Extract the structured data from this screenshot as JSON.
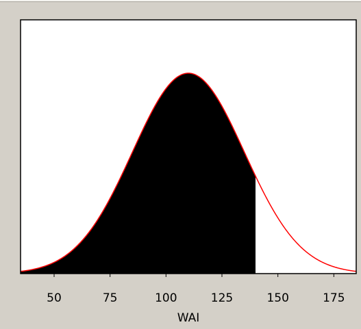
{
  "chart_data": {
    "type": "area",
    "title": "",
    "xlabel": "WAI",
    "ylabel": "",
    "xlim": [
      35,
      185
    ],
    "ylim": [
      0,
      1
    ],
    "grid": false,
    "legend": "none",
    "x_ticks": [
      50,
      75,
      100,
      125,
      150,
      175
    ],
    "x_tick_labels": [
      "50",
      "75",
      "100",
      "125",
      "150",
      "175"
    ],
    "distribution": {
      "name": "normal",
      "mean": 110,
      "sd": 25
    },
    "shaded_region": {
      "from": 35,
      "to": 140
    },
    "colors": {
      "curve": "#ff0000",
      "fill": "#000000",
      "plot_background": "#ffffff",
      "panel_background": "#d4d0c8"
    }
  }
}
